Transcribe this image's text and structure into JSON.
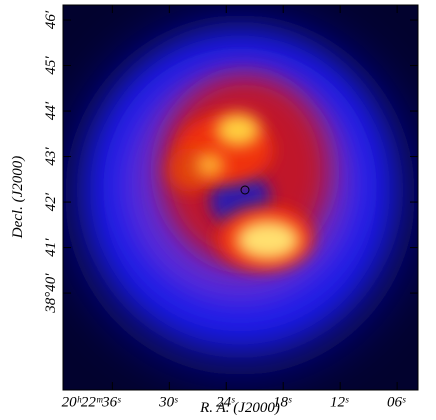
{
  "chart_data": {
    "type": "image",
    "xlabel": "R. A. (J2000)",
    "ylabel": "Decl. (J2000)",
    "xlim": [
      41.2,
      3.8
    ],
    "ylim": [
      37.87,
      46.33
    ],
    "xticks": [
      {
        "value": 36,
        "label": "20ʰ22ᵐ36ˢ"
      },
      {
        "value": 30,
        "label": "30ˢ"
      },
      {
        "value": 24,
        "label": "24ˢ"
      },
      {
        "value": 18,
        "label": "18ˢ"
      },
      {
        "value": 12,
        "label": "12ˢ"
      },
      {
        "value": 6,
        "label": "06ˢ"
      }
    ],
    "yticks": [
      {
        "value": 40,
        "label": "38°40′"
      },
      {
        "value": 41,
        "label": "41′"
      },
      {
        "value": 42,
        "label": "42′"
      },
      {
        "value": 43,
        "label": "43′"
      },
      {
        "value": 44,
        "label": "44′"
      },
      {
        "value": 45,
        "label": "45′"
      },
      {
        "value": 46,
        "label": "46′"
      }
    ]
  }
}
